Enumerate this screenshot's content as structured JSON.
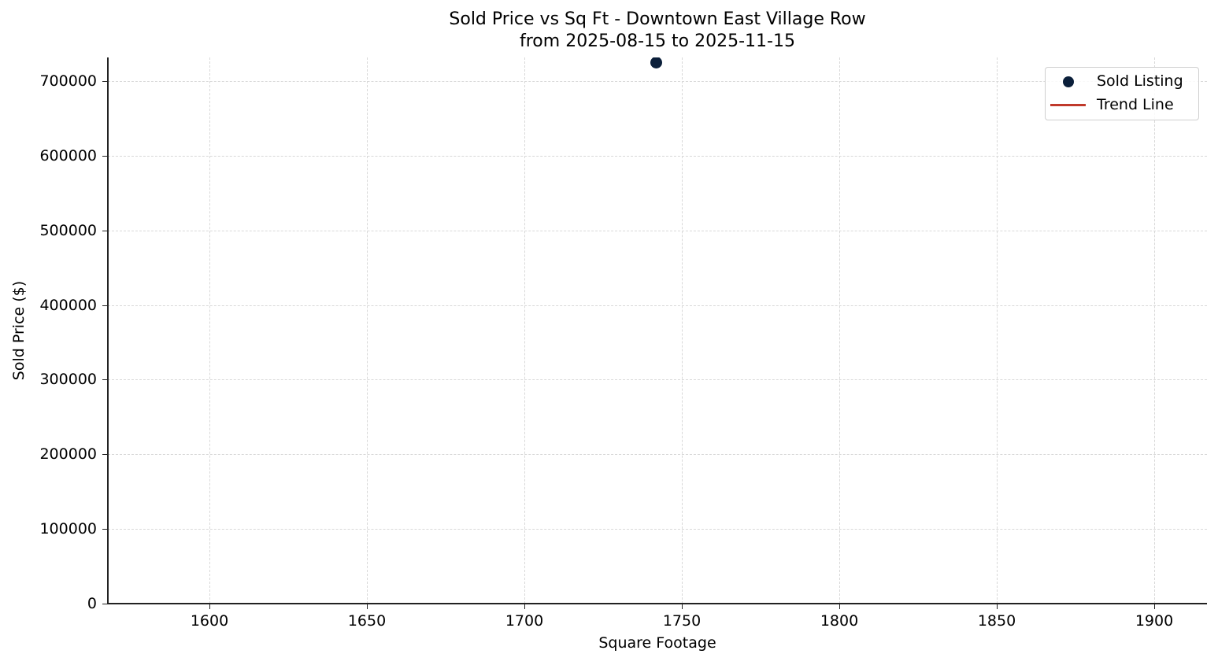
{
  "chart_data": {
    "type": "scatter",
    "title": "Sold Price vs Sq Ft - Downtown East Village Row",
    "subtitle": "from 2025-08-15 to 2025-11-15",
    "xlabel": "Square Footage",
    "ylabel": "Sold Price ($)",
    "xlim": [
      1567.8,
      1916.8
    ],
    "ylim": [
      0,
      731600
    ],
    "x_ticks": [
      1600,
      1650,
      1700,
      1750,
      1800,
      1850,
      1900
    ],
    "y_ticks": [
      0,
      100000,
      200000,
      300000,
      400000,
      500000,
      600000,
      700000
    ],
    "grid": true,
    "legend_position": "upper right",
    "series": [
      {
        "name": "Sold Listing",
        "kind": "scatter",
        "color": "#0b1f3a",
        "points": [
          {
            "x": 1742,
            "y": 725000
          }
        ]
      },
      {
        "name": "Trend Line",
        "kind": "line",
        "color": "#c0392b",
        "points": []
      }
    ]
  },
  "labels": {
    "x_ticks": [
      "1600",
      "1650",
      "1700",
      "1750",
      "1800",
      "1850",
      "1900"
    ],
    "y_ticks": [
      "0",
      "100000",
      "200000",
      "300000",
      "400000",
      "500000",
      "600000",
      "700000"
    ]
  }
}
